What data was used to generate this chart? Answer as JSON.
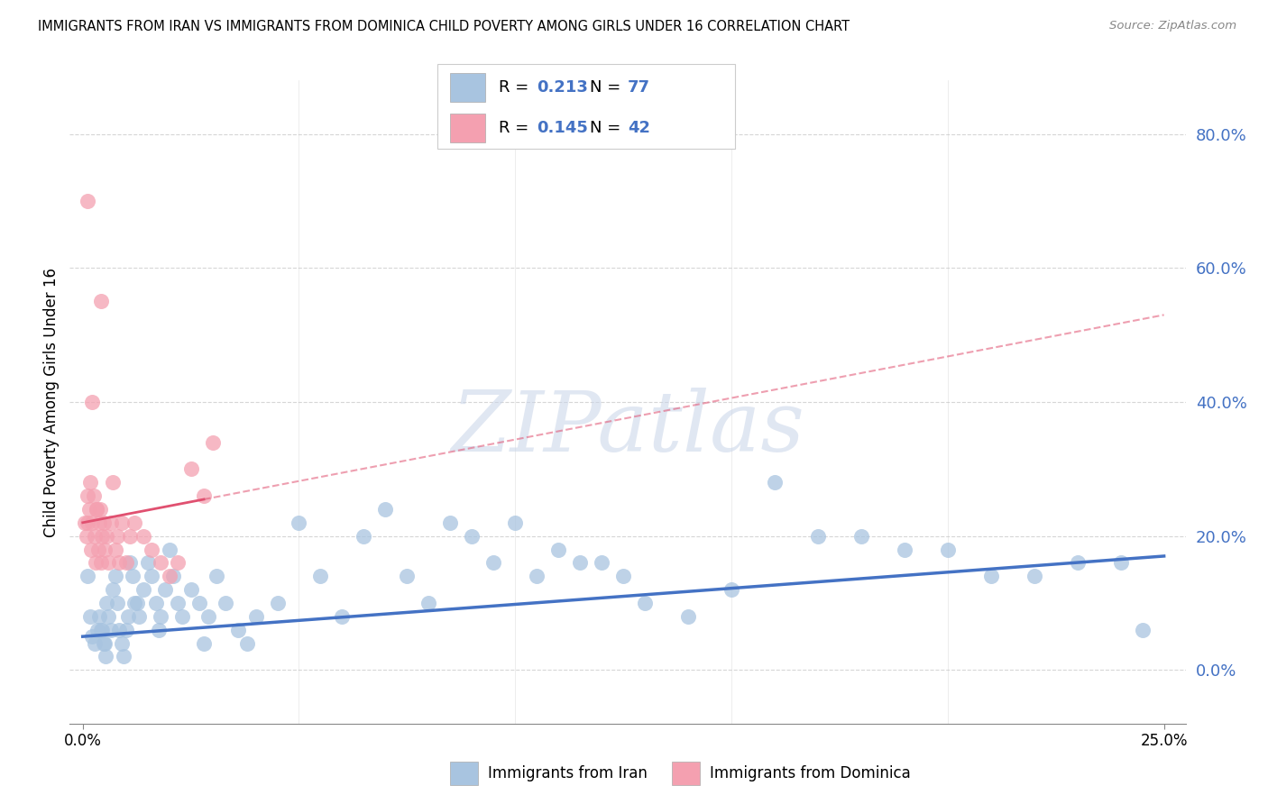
{
  "title": "IMMIGRANTS FROM IRAN VS IMMIGRANTS FROM DOMINICA CHILD POVERTY AMONG GIRLS UNDER 16 CORRELATION CHART",
  "source": "Source: ZipAtlas.com",
  "ylabel": "Child Poverty Among Girls Under 16",
  "legend1_label": "Immigrants from Iran",
  "legend2_label": "Immigrants from Dominica",
  "R_iran": 0.213,
  "N_iran": 77,
  "R_dominica": 0.145,
  "N_dominica": 42,
  "xlim_min": -0.3,
  "xlim_max": 25.5,
  "ylim_min": -8,
  "ylim_max": 88,
  "yticks": [
    0,
    20,
    40,
    60,
    80
  ],
  "ytick_labels": [
    "0.0%",
    "20.0%",
    "40.0%",
    "60.0%",
    "80.0%"
  ],
  "color_iran": "#a8c4e0",
  "color_dominica": "#f4a0b0",
  "trendline_iran_color": "#4472c4",
  "trendline_dominica_color": "#e05070",
  "iran_trendline_x0": 0,
  "iran_trendline_y0": 5.0,
  "iran_trendline_x1": 25,
  "iran_trendline_y1": 17.0,
  "dom_trendline_x0": 0,
  "dom_trendline_y0": 22.0,
  "dom_trendline_x1": 25,
  "dom_trendline_y1": 53.0,
  "dom_solid_end_x": 2.8,
  "watermark_text": "ZIPatlas",
  "background_color": "#ffffff",
  "grid_color": "#cccccc",
  "iran_x": [
    0.12,
    0.18,
    0.22,
    0.28,
    0.33,
    0.38,
    0.44,
    0.5,
    0.55,
    0.6,
    0.65,
    0.7,
    0.75,
    0.8,
    0.85,
    0.9,
    0.95,
    1.0,
    1.05,
    1.1,
    1.15,
    1.2,
    1.3,
    1.4,
    1.5,
    1.6,
    1.7,
    1.8,
    1.9,
    2.0,
    2.1,
    2.2,
    2.3,
    2.5,
    2.7,
    2.9,
    3.1,
    3.3,
    3.6,
    4.0,
    4.5,
    5.0,
    5.5,
    6.0,
    6.5,
    7.0,
    7.5,
    8.0,
    8.5,
    9.0,
    9.5,
    10.0,
    10.5,
    11.0,
    11.5,
    12.0,
    12.5,
    13.0,
    14.0,
    15.0,
    16.0,
    17.0,
    18.0,
    19.0,
    20.0,
    21.0,
    22.0,
    23.0,
    24.0,
    24.5,
    0.42,
    0.48,
    0.52,
    1.25,
    1.75,
    2.8,
    3.8
  ],
  "iran_y": [
    14,
    8,
    5,
    4,
    6,
    8,
    6,
    4,
    10,
    8,
    6,
    12,
    14,
    10,
    6,
    4,
    2,
    6,
    8,
    16,
    14,
    10,
    8,
    12,
    16,
    14,
    10,
    8,
    12,
    18,
    14,
    10,
    8,
    12,
    10,
    8,
    14,
    10,
    6,
    8,
    10,
    22,
    14,
    8,
    20,
    24,
    14,
    10,
    22,
    20,
    16,
    22,
    14,
    18,
    16,
    16,
    14,
    10,
    8,
    12,
    28,
    20,
    20,
    18,
    18,
    14,
    14,
    16,
    16,
    6,
    6,
    4,
    2,
    10,
    6,
    4,
    4
  ],
  "dominica_x": [
    0.05,
    0.08,
    0.1,
    0.12,
    0.15,
    0.18,
    0.2,
    0.22,
    0.25,
    0.28,
    0.3,
    0.32,
    0.35,
    0.38,
    0.4,
    0.42,
    0.45,
    0.48,
    0.5,
    0.55,
    0.6,
    0.65,
    0.7,
    0.75,
    0.8,
    0.85,
    0.9,
    1.0,
    1.1,
    1.2,
    1.4,
    1.6,
    1.8,
    2.0,
    2.2,
    2.5,
    2.8,
    3.0,
    0.22,
    0.32,
    0.1,
    0.42
  ],
  "dominica_y": [
    22,
    20,
    22,
    26,
    24,
    28,
    18,
    22,
    26,
    20,
    16,
    24,
    18,
    22,
    24,
    16,
    20,
    22,
    18,
    20,
    16,
    22,
    28,
    18,
    20,
    16,
    22,
    16,
    20,
    22,
    20,
    18,
    16,
    14,
    16,
    30,
    26,
    34,
    40,
    24,
    70,
    55
  ]
}
